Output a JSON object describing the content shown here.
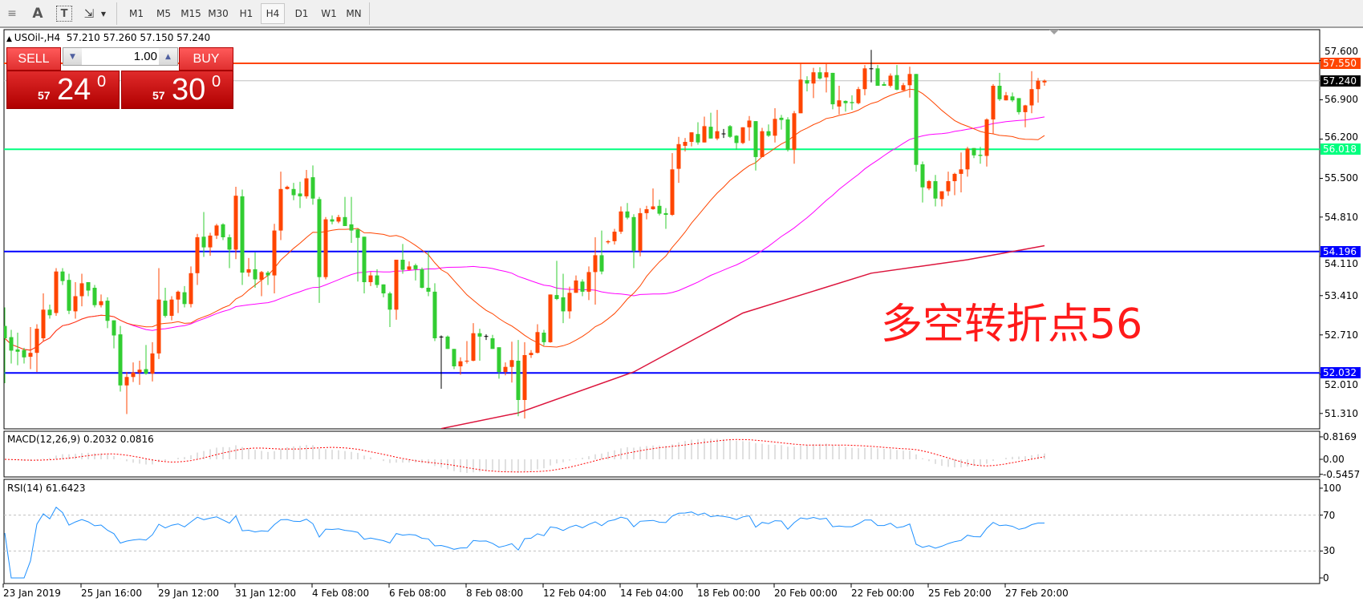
{
  "toolbar": {
    "tools": [
      {
        "name": "fibonacci-fan-icon",
        "glyph": "≡"
      },
      {
        "name": "text-tool-icon",
        "glyph": "A"
      },
      {
        "name": "text-label-icon",
        "glyph": "T"
      },
      {
        "name": "arrows-tool-icon",
        "glyph": "⇲"
      }
    ],
    "timeframes": [
      "M1",
      "M5",
      "M15",
      "M30",
      "H1",
      "H4",
      "D1",
      "W1",
      "MN"
    ],
    "active_timeframe": "H4"
  },
  "chart": {
    "symbol_info": "USOil-,H4",
    "ohlc_text": "57.210 57.260 57.150 57.240",
    "annotation": "多空转折点56",
    "colors": {
      "up": "#FF4500",
      "down": "#32CD32",
      "doji": "#000000",
      "ma_fast": "#FF4500",
      "ma_mid": "#FF00FF",
      "ma_long": "#DC143C",
      "grid_bg": "#FFFFFF"
    },
    "candles": [
      [
        52.87,
        53.2,
        51.85,
        52.65
      ],
      [
        52.67,
        52.8,
        52.2,
        52.43
      ],
      [
        52.45,
        52.75,
        52.17,
        52.41
      ],
      [
        52.44,
        52.48,
        52.2,
        52.31
      ],
      [
        52.32,
        52.85,
        52.1,
        52.39
      ],
      [
        52.39,
        52.9,
        52.05,
        52.82
      ],
      [
        52.65,
        53.45,
        52.6,
        53.16
      ],
      [
        53.16,
        53.25,
        53.0,
        53.06
      ],
      [
        53.1,
        53.9,
        53.05,
        53.84
      ],
      [
        53.84,
        53.9,
        53.6,
        53.67
      ],
      [
        53.69,
        53.8,
        53.08,
        53.14
      ],
      [
        53.13,
        53.65,
        53.0,
        53.4
      ],
      [
        53.4,
        53.8,
        53.22,
        53.63
      ],
      [
        53.65,
        53.65,
        53.4,
        53.5
      ],
      [
        53.55,
        53.6,
        53.2,
        53.24
      ],
      [
        53.24,
        53.43,
        53.2,
        53.31
      ],
      [
        53.32,
        53.38,
        52.83,
        52.96
      ],
      [
        52.97,
        52.97,
        52.47,
        52.7
      ],
      [
        52.72,
        52.87,
        51.7,
        51.81
      ],
      [
        51.81,
        52.05,
        51.3,
        51.96
      ],
      [
        51.96,
        52.22,
        51.87,
        52.04
      ],
      [
        52.04,
        52.25,
        51.82,
        52.09
      ],
      [
        52.1,
        52.53,
        52.0,
        52.02
      ],
      [
        52.02,
        52.58,
        51.88,
        52.38
      ],
      [
        52.38,
        53.9,
        52.28,
        53.34
      ],
      [
        53.32,
        53.55,
        53.02,
        53.05
      ],
      [
        53.05,
        53.4,
        52.97,
        53.34
      ],
      [
        53.34,
        53.5,
        53.1,
        53.48
      ],
      [
        53.47,
        53.58,
        53.2,
        53.26
      ],
      [
        53.26,
        53.93,
        53.2,
        53.81
      ],
      [
        53.81,
        54.51,
        53.6,
        54.45
      ],
      [
        54.46,
        54.9,
        54.1,
        54.27
      ],
      [
        54.27,
        54.53,
        54.12,
        54.48
      ],
      [
        54.48,
        54.69,
        54.42,
        54.66
      ],
      [
        54.68,
        54.7,
        54.4,
        54.45
      ],
      [
        54.45,
        54.5,
        53.9,
        54.23
      ],
      [
        54.23,
        55.35,
        54.06,
        55.19
      ],
      [
        55.18,
        55.3,
        53.6,
        53.82
      ],
      [
        53.82,
        54.08,
        53.75,
        53.88
      ],
      [
        53.88,
        54.18,
        53.55,
        53.7
      ],
      [
        53.69,
        53.85,
        53.4,
        53.83
      ],
      [
        53.82,
        53.85,
        53.6,
        53.77
      ],
      [
        53.77,
        54.69,
        53.45,
        54.57
      ],
      [
        54.57,
        55.62,
        54.4,
        55.31
      ],
      [
        55.31,
        55.37,
        55.3,
        55.35
      ],
      [
        55.31,
        55.42,
        55.11,
        55.2
      ],
      [
        55.23,
        55.44,
        54.97,
        55.18
      ],
      [
        55.18,
        55.65,
        55.14,
        55.5
      ],
      [
        55.52,
        55.73,
        55.03,
        55.14
      ],
      [
        55.13,
        55.17,
        53.28,
        53.74
      ],
      [
        53.74,
        54.81,
        53.7,
        54.77
      ],
      [
        54.77,
        54.84,
        54.68,
        54.73
      ],
      [
        54.73,
        54.85,
        54.7,
        54.81
      ],
      [
        54.81,
        55.17,
        54.66,
        54.65
      ],
      [
        54.68,
        55.17,
        54.35,
        54.57
      ],
      [
        54.59,
        54.6,
        53.66,
        54.44
      ],
      [
        54.46,
        54.46,
        53.45,
        53.65
      ],
      [
        53.65,
        53.83,
        53.58,
        53.77
      ],
      [
        53.77,
        53.88,
        53.55,
        53.6
      ],
      [
        53.61,
        53.61,
        53.38,
        53.45
      ],
      [
        53.45,
        53.48,
        52.85,
        53.16
      ],
      [
        53.16,
        54.05,
        52.98,
        54.05
      ],
      [
        54.05,
        54.33,
        53.8,
        53.87
      ],
      [
        53.87,
        54.02,
        53.86,
        53.93
      ],
      [
        53.95,
        53.98,
        53.68,
        53.88
      ],
      [
        53.88,
        53.91,
        53.54,
        53.55
      ],
      [
        53.55,
        54.2,
        53.4,
        53.48
      ],
      [
        53.48,
        53.63,
        52.6,
        52.65
      ],
      [
        52.68,
        52.7,
        51.75,
        52.68
      ],
      [
        52.68,
        52.7,
        52.46,
        52.46
      ],
      [
        52.46,
        52.46,
        52.1,
        52.15
      ],
      [
        52.15,
        52.31,
        52.0,
        52.24
      ],
      [
        52.24,
        52.6,
        52.2,
        52.25
      ],
      [
        52.25,
        52.92,
        52.24,
        52.74
      ],
      [
        52.74,
        52.82,
        52.25,
        52.68
      ],
      [
        52.69,
        52.72,
        52.62,
        52.69
      ],
      [
        52.65,
        52.71,
        52.46,
        52.46
      ],
      [
        52.49,
        52.49,
        51.93,
        52.05
      ],
      [
        52.05,
        52.22,
        51.99,
        52.14
      ],
      [
        52.14,
        52.59,
        51.86,
        52.26
      ],
      [
        52.25,
        52.62,
        51.26,
        51.55
      ],
      [
        51.55,
        52.58,
        51.22,
        52.35
      ],
      [
        52.35,
        52.44,
        52.3,
        52.39
      ],
      [
        52.39,
        52.9,
        52.38,
        52.76
      ],
      [
        52.75,
        52.8,
        52.52,
        52.58
      ],
      [
        52.58,
        53.43,
        52.57,
        53.43
      ],
      [
        53.42,
        54.03,
        53.33,
        53.35
      ],
      [
        53.38,
        53.8,
        52.92,
        53.13
      ],
      [
        53.13,
        53.57,
        53.0,
        53.46
      ],
      [
        53.46,
        53.77,
        53.46,
        53.68
      ],
      [
        53.66,
        53.7,
        53.4,
        53.48
      ],
      [
        53.48,
        53.93,
        53.33,
        53.83
      ],
      [
        53.83,
        54.45,
        53.25,
        54.13
      ],
      [
        54.13,
        54.57,
        53.79,
        53.84
      ],
      [
        54.36,
        54.4,
        54.33,
        54.38
      ],
      [
        54.38,
        54.6,
        54.32,
        54.55
      ],
      [
        54.55,
        55.0,
        54.51,
        54.91
      ],
      [
        54.91,
        55.06,
        54.77,
        54.8
      ],
      [
        54.81,
        54.86,
        53.9,
        54.21
      ],
      [
        54.21,
        54.97,
        54.11,
        54.88
      ],
      [
        54.88,
        55.01,
        54.77,
        54.95
      ],
      [
        54.95,
        55.32,
        54.94,
        55.0
      ],
      [
        55.01,
        55.12,
        54.84,
        54.87
      ],
      [
        54.88,
        54.97,
        54.6,
        54.85
      ],
      [
        54.85,
        55.95,
        54.83,
        55.66
      ],
      [
        55.67,
        56.24,
        55.42,
        56.11
      ],
      [
        56.08,
        56.22,
        55.98,
        56.15
      ],
      [
        56.15,
        56.32,
        56.07,
        56.32
      ],
      [
        56.29,
        56.5,
        56.1,
        56.14
      ],
      [
        56.14,
        56.6,
        56.14,
        56.43
      ],
      [
        56.42,
        56.67,
        56.21,
        56.21
      ],
      [
        56.21,
        56.72,
        56.18,
        56.34
      ],
      [
        56.3,
        56.38,
        56.22,
        56.3
      ],
      [
        56.43,
        56.45,
        56.22,
        56.24
      ],
      [
        56.26,
        56.27,
        56.01,
        56.13
      ],
      [
        56.13,
        56.41,
        56.11,
        56.41
      ],
      [
        56.41,
        56.61,
        56.17,
        56.53
      ],
      [
        56.52,
        56.52,
        55.64,
        55.88
      ],
      [
        55.88,
        56.4,
        55.88,
        56.34
      ],
      [
        56.34,
        56.46,
        56.24,
        56.26
      ],
      [
        56.26,
        56.75,
        56.14,
        56.56
      ],
      [
        56.58,
        56.63,
        56.37,
        56.54
      ],
      [
        56.55,
        56.59,
        55.98,
        56.01
      ],
      [
        56.01,
        56.7,
        55.76,
        56.66
      ],
      [
        56.66,
        57.55,
        56.66,
        57.26
      ],
      [
        57.25,
        57.32,
        57.05,
        57.19
      ],
      [
        57.19,
        57.47,
        56.93,
        57.39
      ],
      [
        57.39,
        57.48,
        57.26,
        57.28
      ],
      [
        57.3,
        57.55,
        57.03,
        57.39
      ],
      [
        57.38,
        57.38,
        56.73,
        56.82
      ],
      [
        56.78,
        57.15,
        56.64,
        56.89
      ],
      [
        56.88,
        56.89,
        56.69,
        56.84
      ],
      [
        56.86,
        56.98,
        56.72,
        56.84
      ],
      [
        56.84,
        57.13,
        56.82,
        57.09
      ],
      [
        57.09,
        57.52,
        56.98,
        57.46
      ],
      [
        57.46,
        57.79,
        57.21,
        57.46
      ],
      [
        57.46,
        57.52,
        57.15,
        57.15
      ],
      [
        57.18,
        57.22,
        57.15,
        57.15
      ],
      [
        57.15,
        57.37,
        57.12,
        57.33
      ],
      [
        57.34,
        57.52,
        57.07,
        57.08
      ],
      [
        57.07,
        57.2,
        57.06,
        57.16
      ],
      [
        57.16,
        57.49,
        56.94,
        57.36
      ],
      [
        57.36,
        57.36,
        55.62,
        55.74
      ],
      [
        55.75,
        55.8,
        55.07,
        55.34
      ],
      [
        55.32,
        55.47,
        55.29,
        55.45
      ],
      [
        55.45,
        55.56,
        55.0,
        55.14
      ],
      [
        55.13,
        55.27,
        55.0,
        55.27
      ],
      [
        55.27,
        55.62,
        55.19,
        55.45
      ],
      [
        55.45,
        55.6,
        55.2,
        55.58
      ],
      [
        55.58,
        55.96,
        55.25,
        55.66
      ],
      [
        55.66,
        56.06,
        55.53,
        56.03
      ],
      [
        56.04,
        56.04,
        55.86,
        55.91
      ],
      [
        55.92,
        56.06,
        55.76,
        55.9
      ],
      [
        55.9,
        56.57,
        55.71,
        56.55
      ],
      [
        56.55,
        57.18,
        56.29,
        57.15
      ],
      [
        57.15,
        57.38,
        56.88,
        56.91
      ],
      [
        56.89,
        57.04,
        56.89,
        56.98
      ],
      [
        56.96,
        57.03,
        56.86,
        56.89
      ],
      [
        56.93,
        56.93,
        56.64,
        56.68
      ],
      [
        56.68,
        56.81,
        56.41,
        56.8
      ],
      [
        56.8,
        57.41,
        56.66,
        57.09
      ],
      [
        57.09,
        57.29,
        56.85,
        57.24
      ],
      [
        57.21,
        57.26,
        57.15,
        57.24
      ]
    ],
    "ma_long_points": [
      [
        68,
        51.04
      ],
      [
        80,
        51.32
      ],
      [
        98,
        52.05
      ],
      [
        115,
        53.1
      ],
      [
        135,
        53.81
      ],
      [
        150,
        54.05
      ],
      [
        162,
        54.3
      ]
    ],
    "price_ticks": [
      "57.600",
      "56.900",
      "56.200",
      "55.500",
      "54.810",
      "54.110",
      "53.410",
      "52.710",
      "52.010",
      "51.310"
    ],
    "levels": [
      {
        "price": "57.550",
        "color": "#FF4500",
        "text_color": "#FFFFFF"
      },
      {
        "price": "57.240",
        "color": "#C0C0C0",
        "badge_color": "#000000",
        "text_color": "#FFFFFF"
      },
      {
        "price": "56.018",
        "color": "#00FF7F",
        "text_color": "#FFFFFF"
      },
      {
        "price": "54.196",
        "color": "#0000FF",
        "text_color": "#FFFFFF"
      },
      {
        "price": "52.032",
        "color": "#0000FF",
        "text_color": "#FFFFFF"
      }
    ],
    "time_labels": [
      "23 Jan 2019",
      "25 Jan 16:00",
      "29 Jan 12:00",
      "31 Jan 12:00",
      "4 Feb 08:00",
      "6 Feb 08:00",
      "8 Feb 08:00",
      "12 Feb 04:00",
      "14 Feb 04:00",
      "18 Feb 00:00",
      "20 Feb 00:00",
      "22 Feb 00:00",
      "25 Feb 20:00",
      "27 Feb 20:00"
    ]
  },
  "trade_panel": {
    "sell_label": "SELL",
    "buy_label": "BUY",
    "lot": "1.00",
    "sell_price": {
      "big_figure": "57",
      "pips": "24",
      "fraction": "0"
    },
    "buy_price": {
      "big_figure": "57",
      "pips": "30",
      "fraction": "0"
    }
  },
  "macd": {
    "title": "MACD(12,26,9) 0.2032 0.0816",
    "ticks": [
      "0.8169",
      "0.00",
      "-0.5457"
    ],
    "colors": {
      "histogram": "#C0C0C0",
      "signal": "#FF0000"
    }
  },
  "rsi": {
    "title": "RSI(14) 61.6423",
    "ticks": [
      "100",
      "70",
      "30",
      "0"
    ],
    "levels": [
      70,
      30
    ],
    "color": "#1E90FF"
  }
}
